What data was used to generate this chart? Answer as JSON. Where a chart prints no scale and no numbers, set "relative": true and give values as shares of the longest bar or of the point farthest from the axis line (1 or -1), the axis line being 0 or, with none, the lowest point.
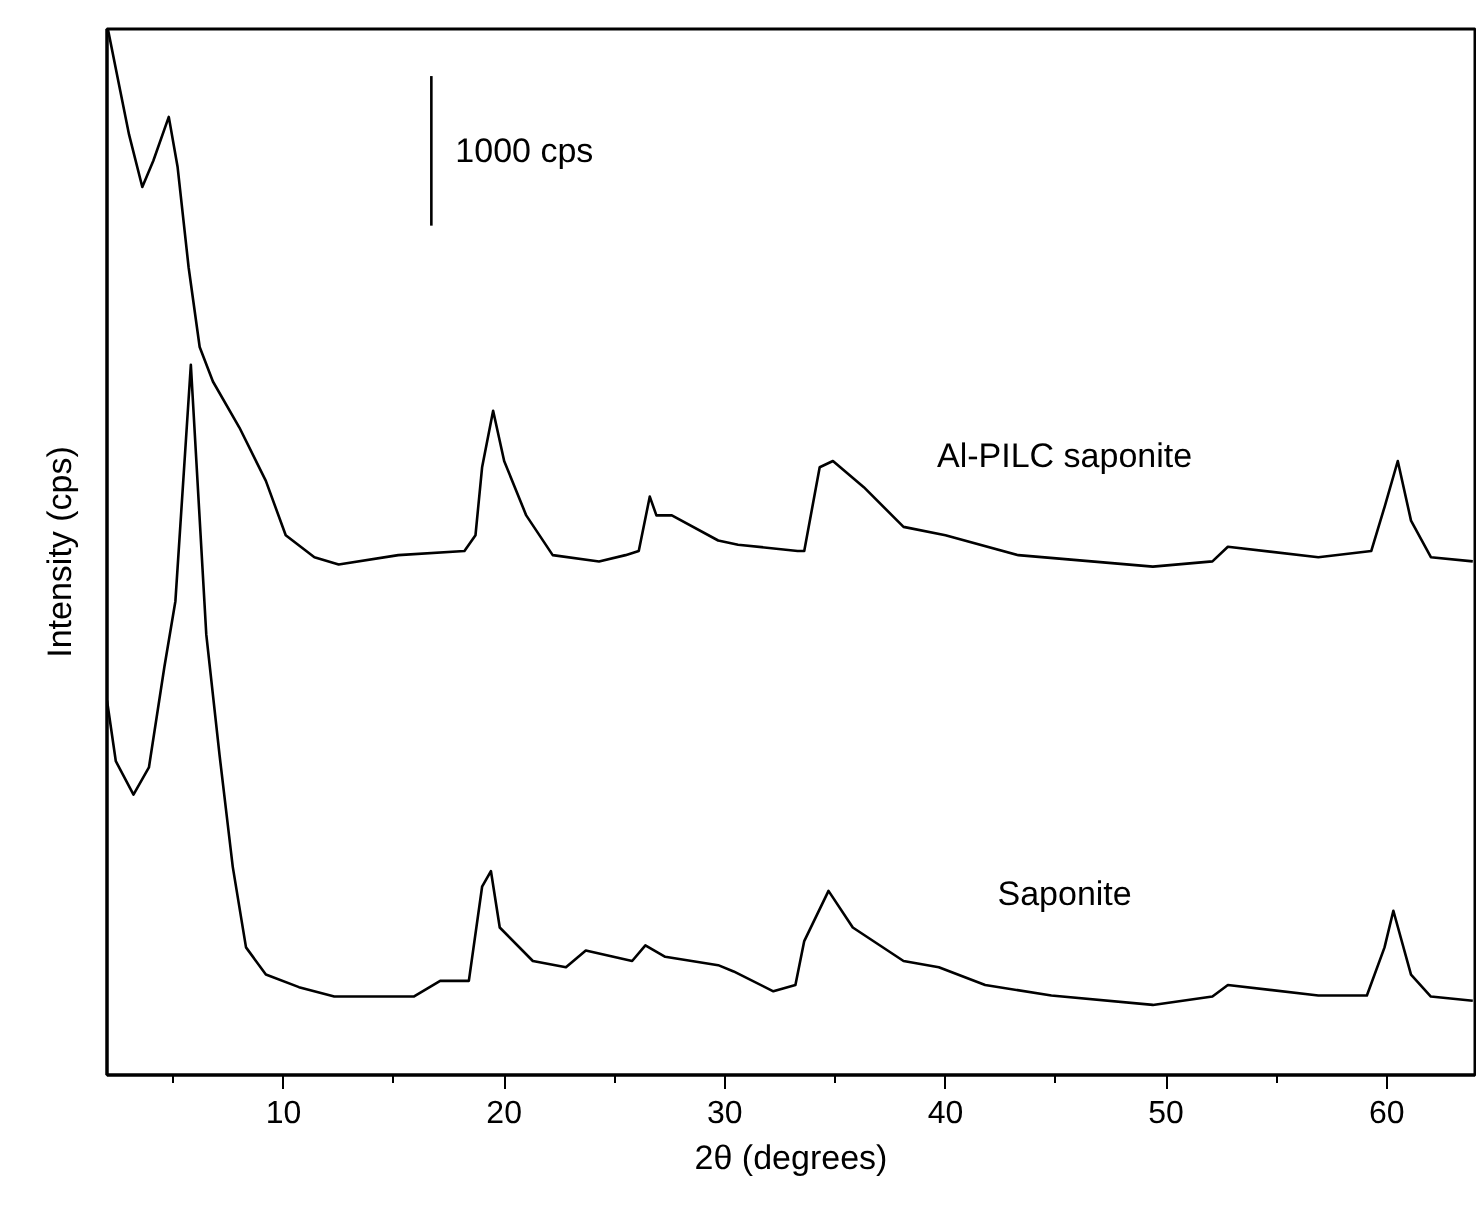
{
  "chart_data": {
    "type": "line",
    "xlabel": "2θ (degrees)",
    "ylabel": "Intensity (cps)",
    "relative": true,
    "xlim": [
      2,
      64
    ],
    "xticks": [
      10,
      20,
      30,
      40,
      50,
      60
    ],
    "grid": false,
    "legend": false,
    "marker": "none",
    "line_style": "solid",
    "tick_labels": "x",
    "annotations": [
      {
        "text": "1000 cps",
        "x": 16.7,
        "y": 0.883
      }
    ],
    "series": [
      {
        "name": "Al-PILC saponite",
        "color": "#000000",
        "x": [
          2.04,
          2.6,
          3.0,
          3.6,
          4.1,
          4.8,
          5.2,
          5.7,
          6.2,
          6.8,
          8.0,
          9.2,
          10.1,
          11.4,
          12.5,
          15.2,
          18.2,
          18.7,
          19.0,
          19.5,
          20.0,
          21.0,
          22.2,
          24.3,
          25.5,
          26.1,
          26.6,
          26.9,
          27.6,
          29.7,
          30.6,
          33.3,
          33.6,
          34.3,
          34.9,
          36.3,
          38.1,
          40.0,
          43.3,
          49.4,
          52.1,
          52.8,
          56.9,
          59.3,
          59.9,
          60.5,
          61.1,
          62.0,
          63.9
        ],
        "values": [
          1.0,
          0.941,
          0.899,
          0.849,
          0.874,
          0.916,
          0.868,
          0.772,
          0.696,
          0.663,
          0.619,
          0.568,
          0.516,
          0.495,
          0.488,
          0.497,
          0.501,
          0.516,
          0.581,
          0.635,
          0.587,
          0.535,
          0.497,
          0.491,
          0.497,
          0.501,
          0.553,
          0.535,
          0.535,
          0.511,
          0.507,
          0.501,
          0.501,
          0.581,
          0.587,
          0.562,
          0.524,
          0.516,
          0.497,
          0.486,
          0.491,
          0.505,
          0.495,
          0.501,
          0.543,
          0.587,
          0.53,
          0.495,
          0.491
        ]
      },
      {
        "name": "Saponite",
        "color": "#000000",
        "x": [
          2.0,
          2.4,
          3.2,
          3.9,
          4.6,
          5.1,
          5.8,
          6.5,
          7.1,
          7.7,
          8.3,
          9.2,
          10.7,
          12.3,
          15.9,
          17.1,
          18.4,
          19.0,
          19.4,
          19.8,
          21.3,
          22.8,
          23.7,
          25.8,
          26.4,
          27.3,
          29.7,
          30.4,
          32.2,
          33.2,
          33.6,
          34.7,
          35.8,
          38.1,
          39.7,
          41.8,
          44.8,
          49.4,
          52.1,
          52.8,
          56.9,
          59.1,
          59.9,
          60.3,
          61.1,
          62.0,
          63.9
        ],
        "values": [
          0.358,
          0.3,
          0.268,
          0.294,
          0.39,
          0.453,
          0.679,
          0.421,
          0.306,
          0.199,
          0.122,
          0.096,
          0.084,
          0.075,
          0.075,
          0.09,
          0.09,
          0.18,
          0.195,
          0.141,
          0.109,
          0.103,
          0.119,
          0.109,
          0.124,
          0.113,
          0.105,
          0.099,
          0.08,
          0.086,
          0.128,
          0.176,
          0.141,
          0.109,
          0.103,
          0.086,
          0.076,
          0.067,
          0.075,
          0.086,
          0.076,
          0.076,
          0.122,
          0.157,
          0.096,
          0.075,
          0.071
        ]
      },
      {
        "color": "#000000",
        "x": [
          16.7,
          16.7
        ],
        "values": [
          0.955,
          0.812
        ]
      }
    ]
  }
}
